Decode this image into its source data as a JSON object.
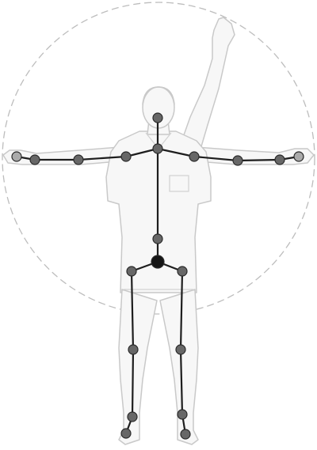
{
  "diagram": {
    "kind": "human pose skeleton over figure outline",
    "has_dashed_reach_circle": true,
    "joint_count": 21,
    "colors": {
      "background": "#ffffff",
      "outline": "#c9c9c9",
      "outline_fill": "#f7f7f7",
      "circle": "#bdbdbd",
      "bone": "#1e1e1e",
      "joint": "#676767",
      "joint_center": "#151515",
      "joint_faint": "#aaaaaa"
    },
    "icons": [
      "human-figure-outline",
      "skeleton",
      "joint-node"
    ]
  }
}
